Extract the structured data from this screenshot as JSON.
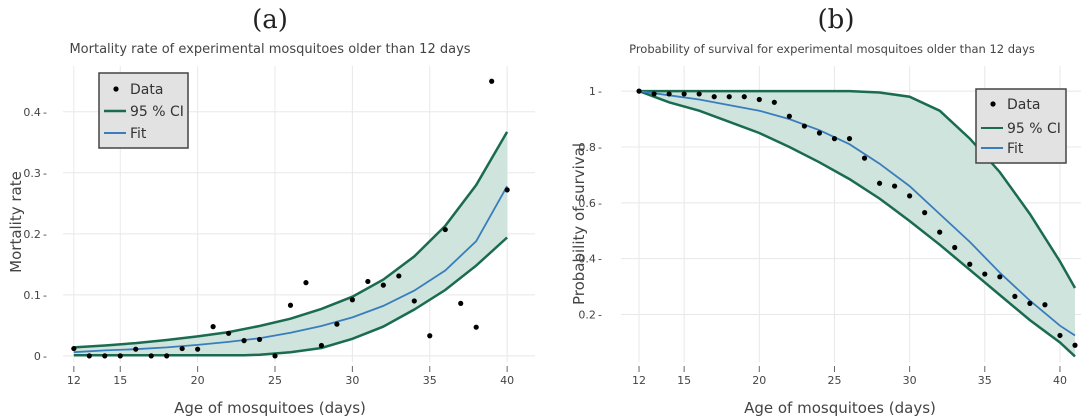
{
  "colors": {
    "ci": "#1a6b50",
    "ci_fill": "#cfe4dc",
    "fit": "#3a7dbd",
    "data": "#000000",
    "grid": "#e8e8e8",
    "legend_bg": "#e2e2e2"
  },
  "chart_data": [
    {
      "panel": "(a)",
      "type": "scatter",
      "title": "Mortality rate of experimental mosquitoes older than 12 days",
      "xlabel": "Age of mosquitoes (days)",
      "ylabel": "Mortality rate",
      "xlim": [
        11.3,
        41.8
      ],
      "ylim": [
        -0.01,
        0.475
      ],
      "xticks": [
        12,
        15,
        20,
        25,
        30,
        35,
        40
      ],
      "yticks": [
        0,
        0.1,
        0.2,
        0.3,
        0.4
      ],
      "ytick_labels": [
        "0",
        "0.1",
        "0.2",
        "0.3",
        "0.4"
      ],
      "legend": {
        "position": "top-left",
        "entries": [
          "Data",
          "95 % CI",
          "Fit"
        ]
      },
      "data": {
        "x": [
          12,
          13,
          14,
          15,
          16,
          17,
          18,
          19,
          20,
          21,
          22,
          23,
          24,
          25,
          26,
          27,
          28,
          29,
          30,
          31,
          32,
          33,
          34,
          35,
          36,
          37,
          38,
          39,
          40
        ],
        "y": [
          0.012,
          0,
          0,
          0,
          0.011,
          0,
          0,
          0.012,
          0.011,
          0.048,
          0.037,
          0.025,
          0.027,
          0,
          0.083,
          0.12,
          0.017,
          0.052,
          0.092,
          0.122,
          0.116,
          0.131,
          0.09,
          0.033,
          0.207,
          0.086,
          0.047,
          0.45,
          0.272
        ]
      },
      "ci_upper": {
        "x": [
          12,
          14,
          16,
          18,
          20,
          22,
          24,
          26,
          28,
          30,
          32,
          34,
          36,
          38,
          40
        ],
        "y": [
          0.014,
          0.017,
          0.021,
          0.026,
          0.032,
          0.039,
          0.049,
          0.061,
          0.077,
          0.097,
          0.125,
          0.163,
          0.213,
          0.28,
          0.367
        ]
      },
      "ci_lower": {
        "x": [
          12,
          14,
          16,
          18,
          20,
          22,
          23,
          24,
          26,
          28,
          30,
          32,
          34,
          36,
          38,
          40
        ],
        "y": [
          0.001,
          0.001,
          0.001,
          0.001,
          0.001,
          0.001,
          0.001,
          0.002,
          0.006,
          0.013,
          0.028,
          0.048,
          0.076,
          0.108,
          0.148,
          0.194
        ]
      },
      "fit": {
        "x": [
          12,
          14,
          16,
          18,
          20,
          22,
          24,
          26,
          28,
          30,
          32,
          34,
          36,
          38,
          40
        ],
        "y": [
          0.006,
          0.009,
          0.011,
          0.014,
          0.018,
          0.023,
          0.029,
          0.038,
          0.049,
          0.063,
          0.082,
          0.107,
          0.14,
          0.188,
          0.278
        ]
      }
    },
    {
      "panel": "(b)",
      "type": "scatter",
      "title": "Probability of survival for experimental mosquitoes older than 12 days",
      "xlabel": "Age of mosquitoes (days)",
      "ylabel": "Probability of survival",
      "xlim": [
        10.8,
        41.4
      ],
      "ylim": [
        0.03,
        1.09
      ],
      "xticks": [
        12,
        15,
        20,
        25,
        30,
        35,
        40
      ],
      "yticks": [
        0.2,
        0.4,
        0.6,
        0.8,
        1
      ],
      "ytick_labels": [
        "0.2",
        "0.4",
        "0.6",
        "0.8",
        "1"
      ],
      "legend": {
        "position": "top-right",
        "entries": [
          "Data",
          "95 % CI",
          "Fit"
        ]
      },
      "data": {
        "x": [
          12,
          13,
          14,
          15,
          16,
          17,
          18,
          19,
          20,
          21,
          22,
          23,
          24,
          25,
          26,
          27,
          28,
          29,
          30,
          31,
          32,
          33,
          34,
          35,
          36,
          37,
          38,
          39,
          40,
          41
        ],
        "y": [
          1,
          0.99,
          0.99,
          0.99,
          0.99,
          0.98,
          0.98,
          0.98,
          0.97,
          0.96,
          0.91,
          0.875,
          0.85,
          0.83,
          0.83,
          0.76,
          0.67,
          0.66,
          0.625,
          0.565,
          0.495,
          0.44,
          0.38,
          0.345,
          0.335,
          0.265,
          0.24,
          0.235,
          0.125,
          0.09
        ]
      },
      "ci_upper": {
        "x": [
          12,
          14,
          16,
          18,
          20,
          22,
          24,
          26,
          28,
          30,
          32,
          34,
          36,
          38,
          40,
          41
        ],
        "y": [
          1,
          1,
          1,
          1,
          1,
          1,
          1,
          1,
          0.995,
          0.98,
          0.93,
          0.83,
          0.71,
          0.56,
          0.39,
          0.295
        ]
      },
      "ci_lower": {
        "x": [
          12,
          14,
          16,
          18,
          20,
          22,
          24,
          26,
          28,
          30,
          32,
          34,
          36,
          38,
          40,
          41
        ],
        "y": [
          1,
          0.96,
          0.93,
          0.89,
          0.85,
          0.8,
          0.745,
          0.685,
          0.615,
          0.535,
          0.45,
          0.36,
          0.27,
          0.18,
          0.1,
          0.05
        ]
      },
      "fit": {
        "x": [
          12,
          14,
          16,
          18,
          20,
          22,
          24,
          26,
          28,
          30,
          32,
          34,
          36,
          38,
          40,
          41
        ],
        "y": [
          1,
          0.985,
          0.97,
          0.95,
          0.93,
          0.9,
          0.86,
          0.81,
          0.74,
          0.66,
          0.56,
          0.46,
          0.35,
          0.25,
          0.16,
          0.125
        ]
      }
    }
  ]
}
